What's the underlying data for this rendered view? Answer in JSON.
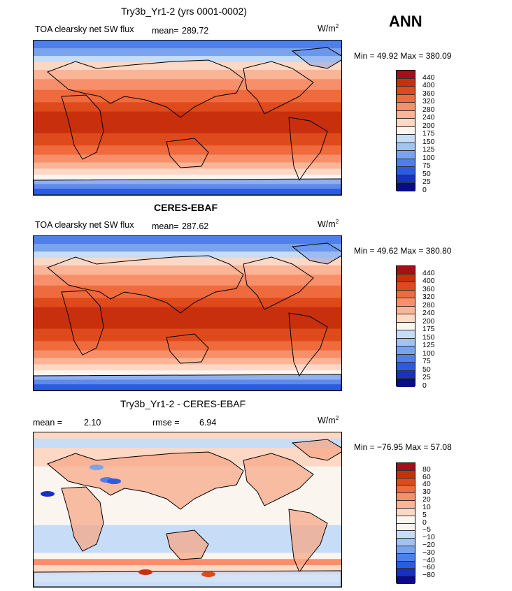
{
  "season": "ANN",
  "panels": [
    {
      "title": "Try3b_Yr1-2 (yrs 0001-0002)",
      "left_label": "TOA clearsky net SW flux",
      "stat_label": "mean=",
      "stat_value": "289.72",
      "units": "W/m",
      "units_sup": "2",
      "minmax": "Min =   49.92  Max = 380.09"
    },
    {
      "title": "CERES-EBAF",
      "left_label": "TOA clearsky net SW flux",
      "stat_label": "mean=",
      "stat_value": "287.62",
      "units": "W/m",
      "units_sup": "2",
      "minmax": "Min =   49.62  Max = 380.80"
    },
    {
      "title": "Try3b_Yr1-2 - CERES-EBAF",
      "mean_label": "mean =",
      "mean_value": "2.10",
      "rmse_label": "rmse =",
      "rmse_value": "6.94",
      "units": "W/m",
      "units_sup": "2",
      "minmax": "Min = −76.95  Max =  57.08"
    }
  ],
  "chart_data": [
    {
      "type": "heatmap",
      "title": "Try3b_Yr1-2 (yrs 0001-0002)",
      "variable": "TOA clearsky net SW flux",
      "mean": 289.72,
      "min": 49.92,
      "max": 380.09,
      "colorbar_levels": [
        "440",
        "400",
        "360",
        "320",
        "280",
        "240",
        "200",
        "175",
        "150",
        "125",
        "100",
        "75",
        "50",
        "25",
        "0"
      ],
      "colorbar_colors": [
        "#a50f15",
        "#c8300d",
        "#df4a1c",
        "#ef6a3c",
        "#f7906a",
        "#fbb496",
        "#fdd8c4",
        "#fbf5f0",
        "#c7dcf7",
        "#a2c2f2",
        "#7aa3ee",
        "#4f7fea",
        "#2c5be3",
        "#1732c0",
        "#0a0a8c"
      ]
    },
    {
      "type": "heatmap",
      "title": "CERES-EBAF",
      "variable": "TOA clearsky net SW flux",
      "mean": 287.62,
      "min": 49.62,
      "max": 380.8,
      "colorbar_levels": [
        "440",
        "400",
        "360",
        "320",
        "280",
        "240",
        "200",
        "175",
        "150",
        "125",
        "100",
        "75",
        "50",
        "25",
        "0"
      ],
      "colorbar_colors": [
        "#a50f15",
        "#c8300d",
        "#df4a1c",
        "#ef6a3c",
        "#f7906a",
        "#fbb496",
        "#fdd8c4",
        "#fbf5f0",
        "#c7dcf7",
        "#a2c2f2",
        "#7aa3ee",
        "#4f7fea",
        "#2c5be3",
        "#1732c0",
        "#0a0a8c"
      ]
    },
    {
      "type": "heatmap",
      "title": "Try3b_Yr1-2 - CERES-EBAF",
      "mean": 2.1,
      "rmse": 6.94,
      "min": -76.95,
      "max": 57.08,
      "colorbar_levels": [
        "80",
        "60",
        "40",
        "30",
        "20",
        "10",
        "5",
        "0",
        "−5",
        "−10",
        "−20",
        "−30",
        "−40",
        "−60",
        "−80"
      ],
      "colorbar_colors": [
        "#a50f15",
        "#c8300d",
        "#df4a1c",
        "#ef6a3c",
        "#f7906a",
        "#fbb496",
        "#fdd8c4",
        "#fbf5f0",
        "#fbf5f0",
        "#c7dcf7",
        "#a2c2f2",
        "#7aa3ee",
        "#4f7fea",
        "#2c5be3",
        "#1732c0",
        "#0a0a8c"
      ]
    }
  ]
}
